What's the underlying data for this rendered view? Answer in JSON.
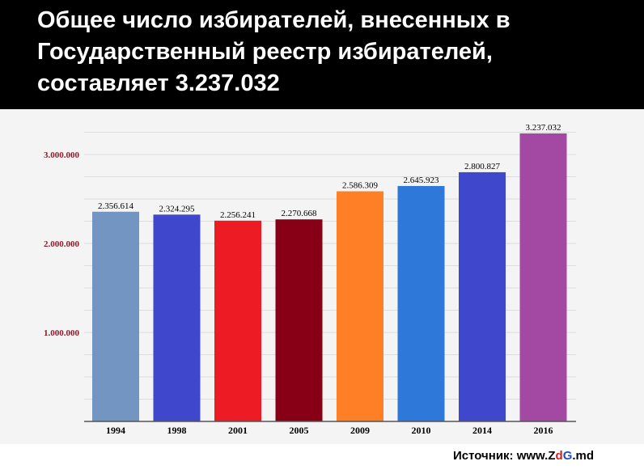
{
  "header": {
    "title_lines": [
      "Общее число избирателей, внесенных в",
      "Государственный реестр избирателей,",
      "составляет 3.237.032"
    ]
  },
  "source": {
    "prefix": "Источник: www.",
    "brand_z": "Z",
    "brand_d": "d",
    "brand_g": "G",
    "suffix": ".md"
  },
  "chart_data": {
    "type": "bar",
    "title": "",
    "xlabel": "",
    "ylabel": "",
    "ylim": [
      0,
      3400000
    ],
    "yticks": [
      1000000,
      2000000,
      3000000
    ],
    "ytick_labels": [
      "1.000.000",
      "2.000.000",
      "3.000.000"
    ],
    "ytick_color": "#8b1a2b",
    "grid": true,
    "categories": [
      "1994",
      "1998",
      "2001",
      "2005",
      "2009",
      "2010",
      "2014",
      "2016"
    ],
    "values": [
      2356614,
      2324295,
      2256241,
      2270668,
      2586309,
      2645923,
      2800827,
      3237032
    ],
    "value_labels": [
      "2.356.614",
      "2.324.295",
      "2.256.241",
      "2.270.668",
      "2.586.309",
      "2.645.923",
      "2.800.827",
      "3.237.032"
    ],
    "colors": [
      "#7295c2",
      "#3f48cc",
      "#ed1c24",
      "#880015",
      "#ff7f27",
      "#2d78d8",
      "#3f48cc",
      "#a349a4"
    ]
  }
}
